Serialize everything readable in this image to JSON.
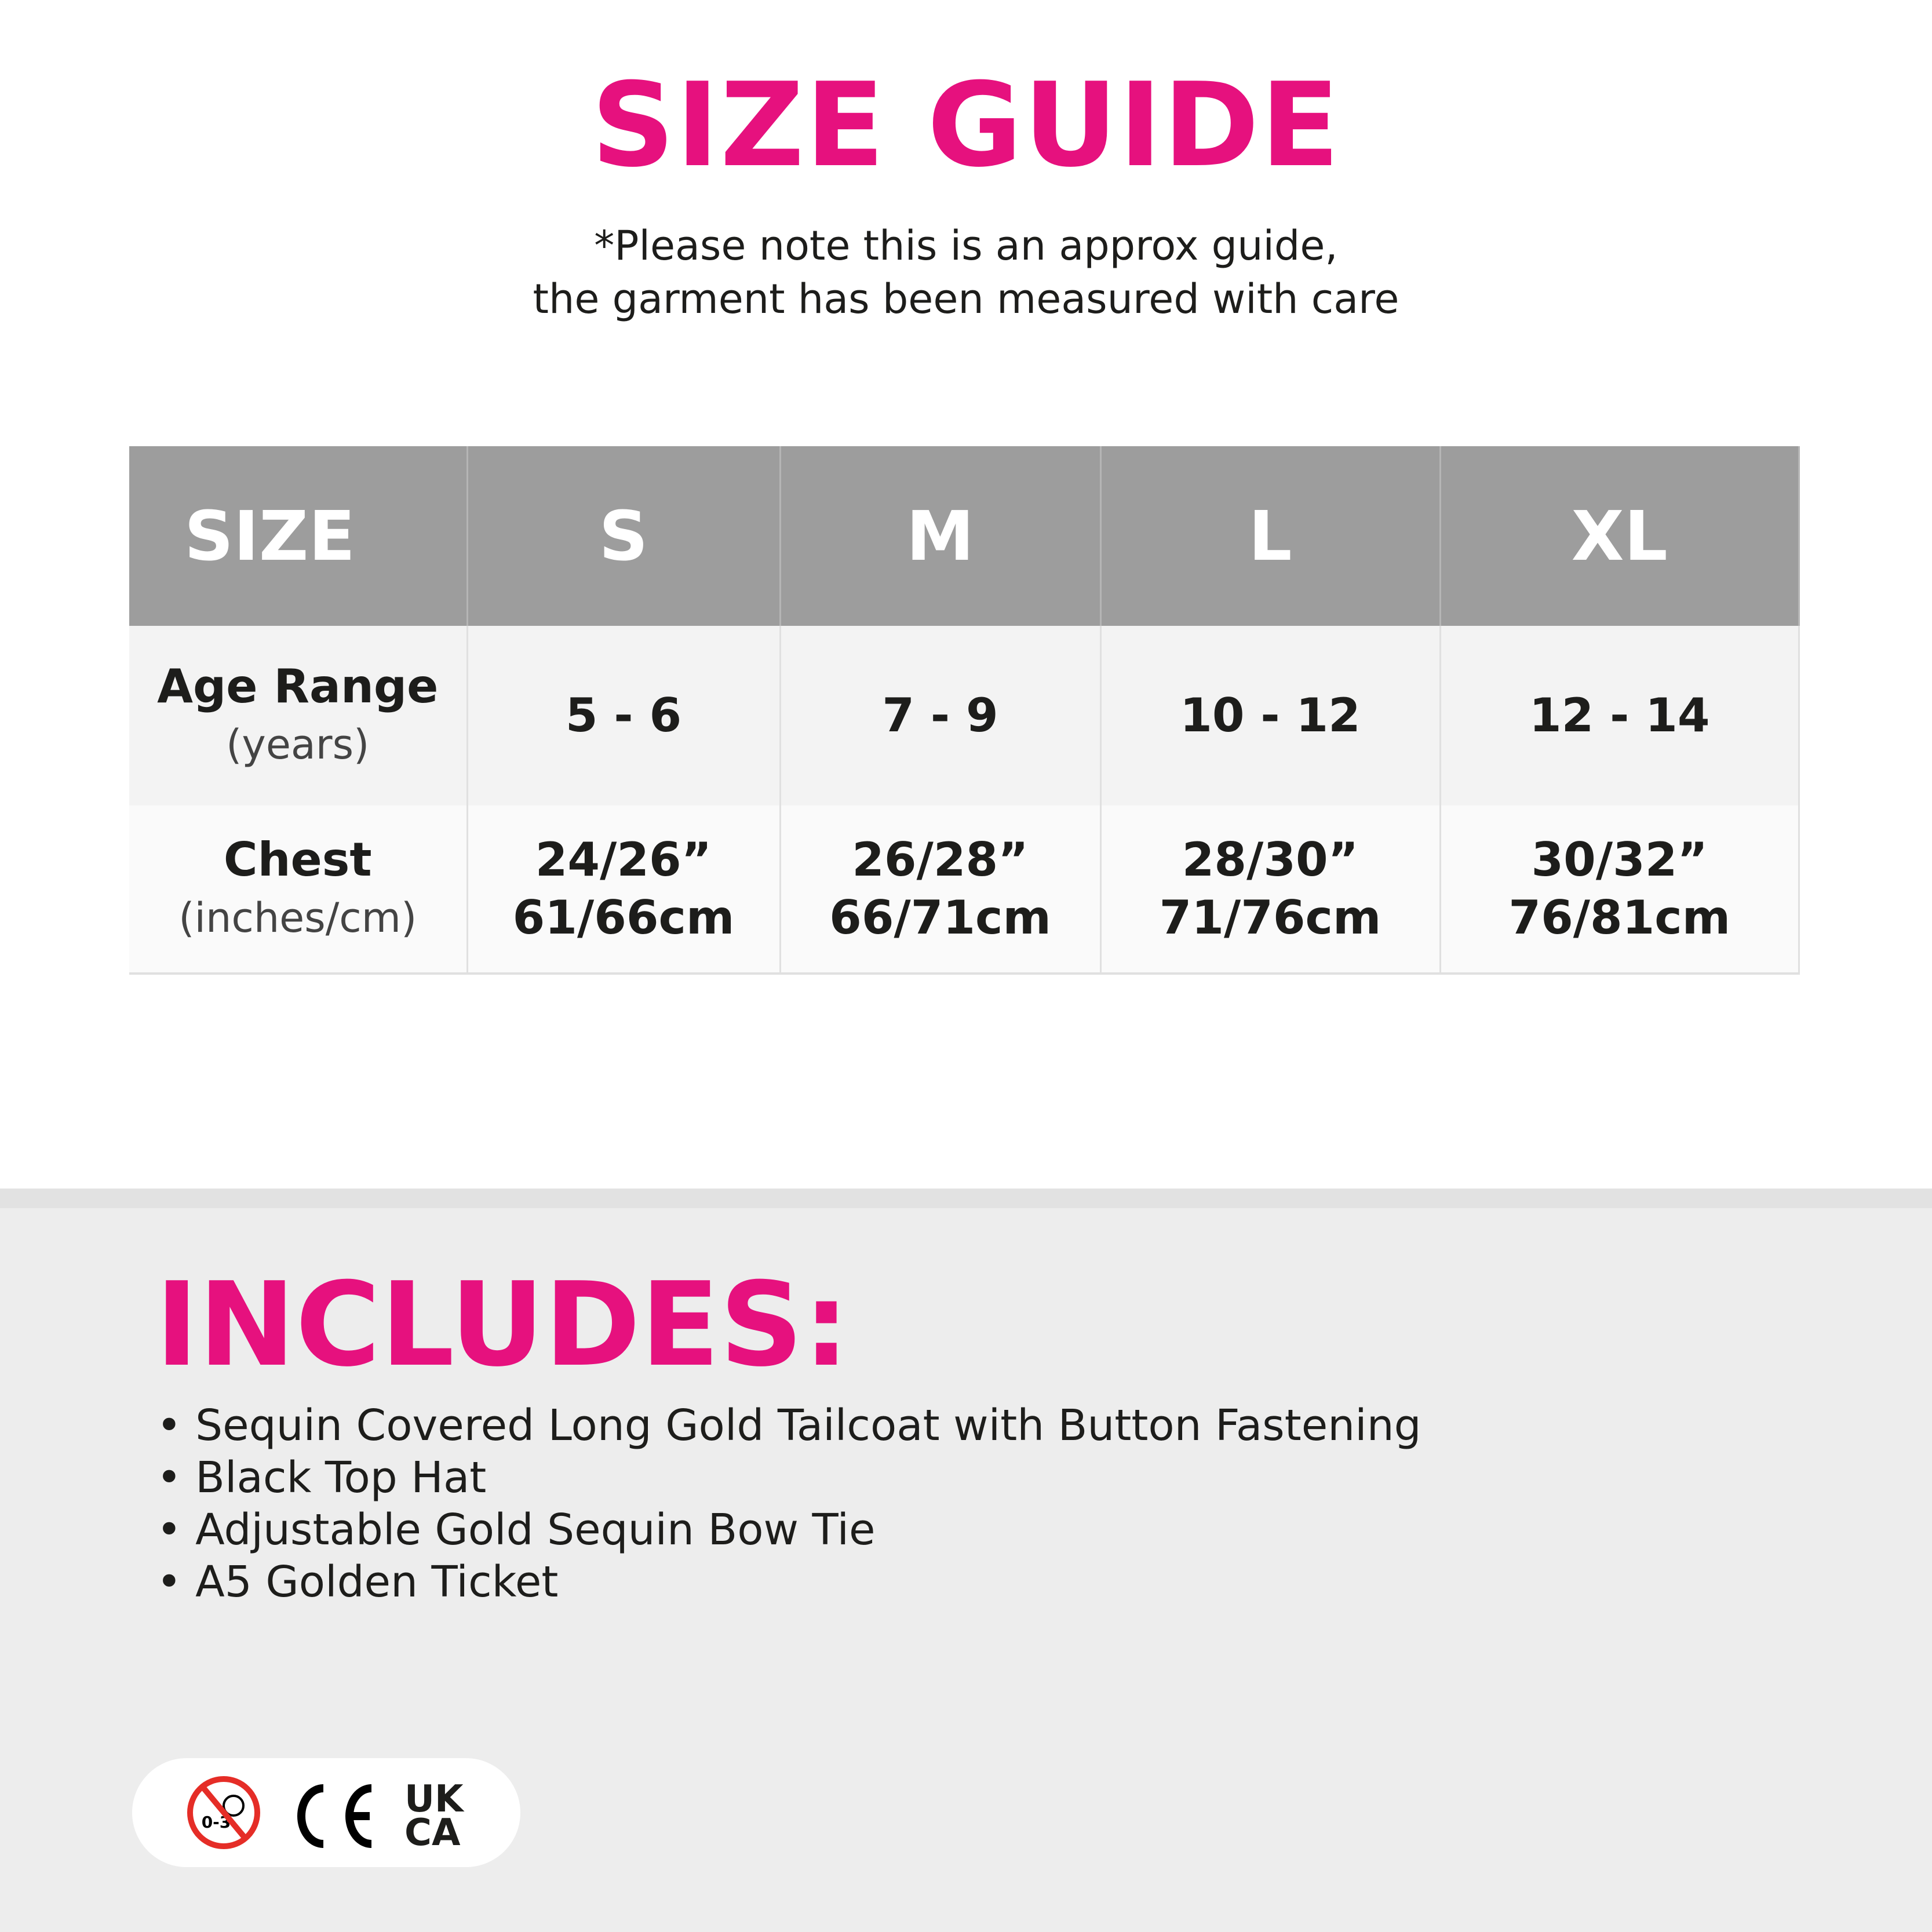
{
  "title": "SIZE GUIDE",
  "note": [
    "*Please note this is an approx guide,",
    "the garment has been measured with care"
  ],
  "table": {
    "headers": [
      "SIZE",
      "S",
      "M",
      "L",
      "XL"
    ],
    "rows": [
      {
        "label": "Age Range",
        "unit": "(years)",
        "values": [
          "5 - 6",
          "7 - 9",
          "10 - 12",
          "12 - 14"
        ]
      },
      {
        "label": "Chest",
        "unit": "(inches/cm)",
        "values": [
          [
            "24/26”",
            "61/66cm"
          ],
          [
            "26/28”",
            "66/71cm"
          ],
          [
            "28/30”",
            "71/76cm"
          ],
          [
            "30/32”",
            "76/81cm"
          ]
        ]
      }
    ]
  },
  "includes": {
    "title": "INCLUDES:",
    "items": [
      "Sequin Covered Long Gold Tailcoat with Button Fastening",
      "Black Top Hat",
      "Adjustable Gold Sequin Bow Tie",
      "A5 Golden Ticket"
    ]
  },
  "badges": {
    "age_warning": "0-3",
    "ce": "CE",
    "ukca": [
      "UK",
      "CA"
    ],
    "icons": [
      "not-for-under-3-icon",
      "ce-mark-icon",
      "ukca-mark-icon"
    ]
  },
  "colors": {
    "accent": "#e6117e",
    "header_bg": "#9d9d9d",
    "warning_red": "#e52d27"
  }
}
